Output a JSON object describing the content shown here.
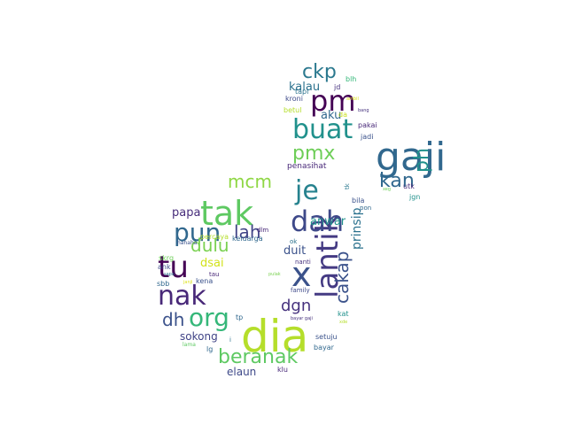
{
  "word_cloud": {
    "words": [
      {
        "text": "dia",
        "color": "#b5de2b"
      },
      {
        "text": "gaji",
        "color": "#31688e"
      },
      {
        "text": "tak",
        "color": "#5ec962"
      },
      {
        "text": "x",
        "color": "#3b528b"
      },
      {
        "text": "lantik",
        "color": "#443a83"
      },
      {
        "text": "tu",
        "color": "#440154"
      },
      {
        "text": "nak",
        "color": "#482878"
      },
      {
        "text": "pun",
        "color": "#31688e"
      },
      {
        "text": "dah",
        "color": "#3e4989"
      },
      {
        "text": "pm",
        "color": "#440154"
      },
      {
        "text": "buat",
        "color": "#21918c"
      },
      {
        "text": "je",
        "color": "#26828e"
      },
      {
        "text": "org",
        "color": "#35b779"
      },
      {
        "text": "beranak",
        "color": "#5ec962"
      },
      {
        "text": "ckp",
        "color": "#2a788e"
      },
      {
        "text": "cakap",
        "color": "#3b528b"
      },
      {
        "text": "ph",
        "color": "#21918c"
      },
      {
        "text": "kan",
        "color": "#31688e"
      },
      {
        "text": "pmx",
        "color": "#6ece58"
      },
      {
        "text": "mcm",
        "color": "#8fd744"
      },
      {
        "text": "lah",
        "color": "#414487"
      },
      {
        "text": "dulu",
        "color": "#7ad151"
      },
      {
        "text": "dh",
        "color": "#3b528b"
      },
      {
        "text": "dgn",
        "color": "#46327e"
      },
      {
        "text": "kalau",
        "color": "#2c728e"
      },
      {
        "text": "prinsip",
        "color": "#2c728e"
      },
      {
        "text": "anwar",
        "color": "#21918c"
      },
      {
        "text": "aku",
        "color": "#31688e"
      },
      {
        "text": "papa",
        "color": "#472d7b"
      },
      {
        "text": "duit",
        "color": "#3b528b"
      },
      {
        "text": "sokong",
        "color": "#414487"
      },
      {
        "text": "elaun",
        "color": "#3e4989"
      },
      {
        "text": "dsai",
        "color": "#d2e21b"
      },
      {
        "text": "penasihat",
        "color": "#482878"
      },
      {
        "text": "tapi",
        "color": "#2c728e"
      },
      {
        "text": "jd",
        "color": "#46327e"
      },
      {
        "text": "blh",
        "color": "#35b779"
      },
      {
        "text": "kroni",
        "color": "#3e4989"
      },
      {
        "text": "betul",
        "color": "#b5de2b"
      },
      {
        "text": "bang",
        "color": "#46327e"
      },
      {
        "text": "ambil",
        "color": "#dde318"
      },
      {
        "text": "da",
        "color": "#c8e020"
      },
      {
        "text": "pakai",
        "color": "#482878"
      },
      {
        "text": "jadi",
        "color": "#3b528b"
      },
      {
        "text": "bila",
        "color": "#3b528b"
      },
      {
        "text": "pon",
        "color": "#31688e"
      },
      {
        "text": "utk",
        "color": "#472d7b"
      },
      {
        "text": "tk",
        "color": "#2a788e"
      },
      {
        "text": "xeg",
        "color": "#6ece58"
      },
      {
        "text": "jgn",
        "color": "#21918c"
      },
      {
        "text": "percaya",
        "color": "#b5de2b"
      },
      {
        "text": "hahaha",
        "color": "#3b528b"
      },
      {
        "text": "keluarga",
        "color": "#31688e"
      },
      {
        "text": "dlm",
        "color": "#482878"
      },
      {
        "text": "ok",
        "color": "#2c728e"
      },
      {
        "text": "nanti",
        "color": "#46327e"
      },
      {
        "text": "pulak",
        "color": "#7ad151"
      },
      {
        "text": "skrg",
        "color": "#6ece58"
      },
      {
        "text": "ank",
        "color": "#3e4989"
      },
      {
        "text": "sapa",
        "color": "#2c728e"
      },
      {
        "text": "tau",
        "color": "#482878"
      },
      {
        "text": "sbb",
        "color": "#31688e"
      },
      {
        "text": "janji",
        "color": "#dde318"
      },
      {
        "text": "kena",
        "color": "#3b528b"
      },
      {
        "text": "family",
        "color": "#3e4989"
      },
      {
        "text": "kat",
        "color": "#21918c"
      },
      {
        "text": "tp",
        "color": "#31688e"
      },
      {
        "text": "bayar gaji",
        "color": "#46327e"
      },
      {
        "text": "xde",
        "color": "#b5de2b"
      },
      {
        "text": "lama",
        "color": "#5ec962"
      },
      {
        "text": "i",
        "color": "#2c728e"
      },
      {
        "text": "lg",
        "color": "#31688e"
      },
      {
        "text": "setuju",
        "color": "#3b528b"
      },
      {
        "text": "bayar",
        "color": "#31688e"
      },
      {
        "text": "klu",
        "color": "#482878"
      }
    ]
  }
}
